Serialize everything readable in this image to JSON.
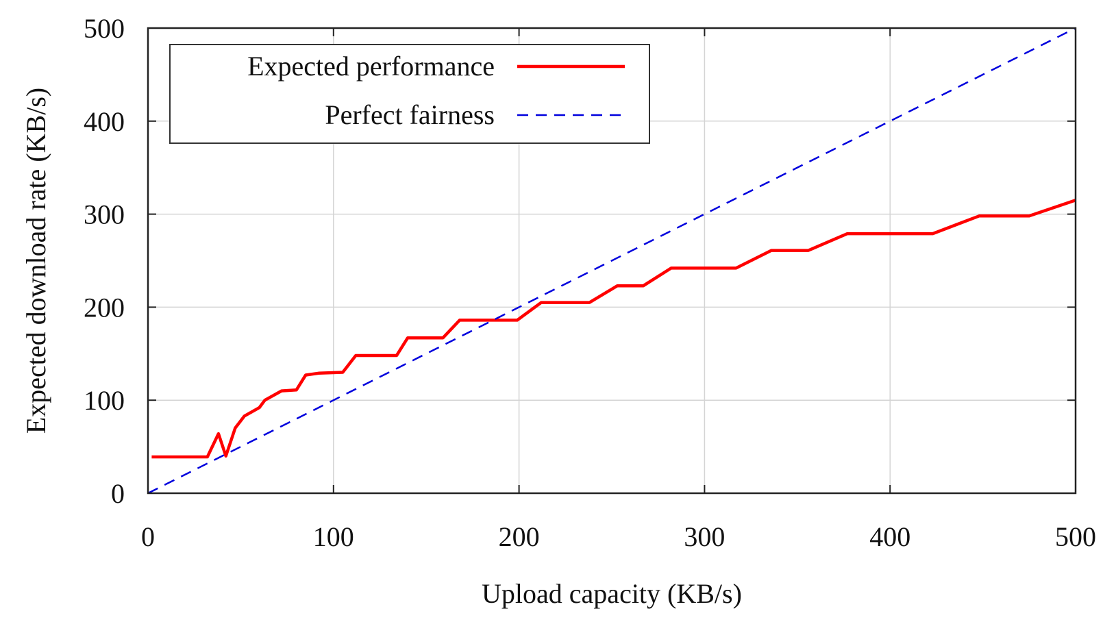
{
  "chart_data": {
    "type": "line",
    "title": "",
    "xlabel": "Upload capacity (KB/s)",
    "ylabel": "Expected download rate (KB/s)",
    "xlim": [
      0,
      500
    ],
    "ylim": [
      0,
      500
    ],
    "xticks": [
      0,
      100,
      200,
      300,
      400,
      500
    ],
    "yticks": [
      0,
      100,
      200,
      300,
      400,
      500
    ],
    "grid": true,
    "legend_position": "top-left",
    "series": [
      {
        "name": "Expected performance",
        "color": "#ff0000",
        "style": "solid",
        "points": [
          [
            2,
            39
          ],
          [
            32,
            39
          ],
          [
            38,
            64
          ],
          [
            42,
            40
          ],
          [
            47,
            70
          ],
          [
            52,
            83
          ],
          [
            60,
            92
          ],
          [
            63,
            100
          ],
          [
            72,
            110
          ],
          [
            80,
            111
          ],
          [
            85,
            127
          ],
          [
            92,
            129
          ],
          [
            105,
            130
          ],
          [
            112,
            148
          ],
          [
            134,
            148
          ],
          [
            140,
            167
          ],
          [
            159,
            167
          ],
          [
            168,
            186
          ],
          [
            199,
            186
          ],
          [
            212,
            205
          ],
          [
            238,
            205
          ],
          [
            253,
            223
          ],
          [
            267,
            223
          ],
          [
            282,
            242
          ],
          [
            317,
            242
          ],
          [
            336,
            261
          ],
          [
            356,
            261
          ],
          [
            377,
            279
          ],
          [
            423,
            279
          ],
          [
            448,
            298
          ],
          [
            475,
            298
          ],
          [
            500,
            315
          ]
        ]
      },
      {
        "name": "Perfect fairness",
        "color": "#0000dd",
        "style": "dashed",
        "points": [
          [
            0,
            0
          ],
          [
            500,
            500
          ]
        ]
      }
    ]
  }
}
